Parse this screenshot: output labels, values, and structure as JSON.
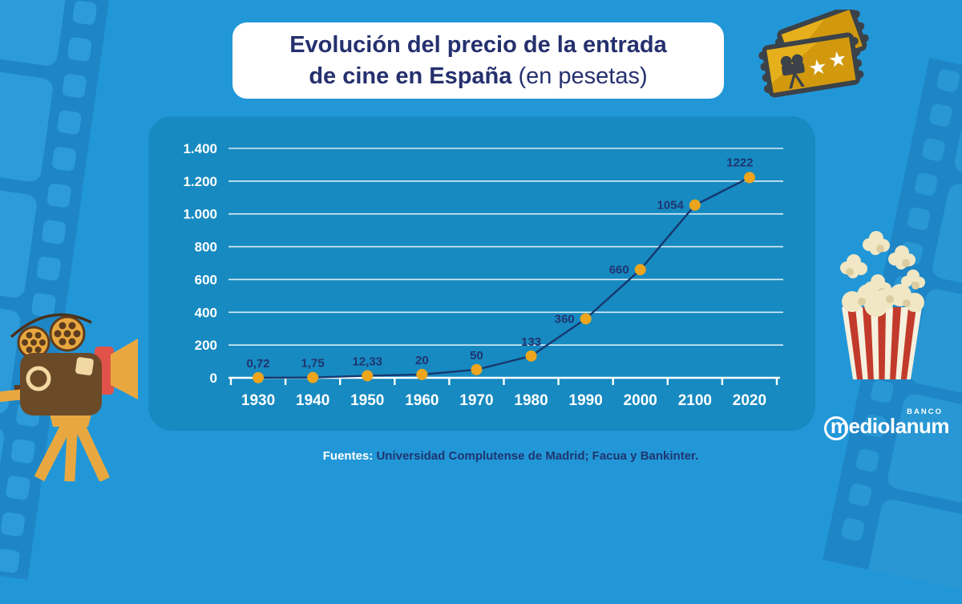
{
  "title": {
    "line1": "Evolución del precio de la entrada",
    "line2_bold": "de cine en España",
    "line2_light": "(en pesetas)"
  },
  "chart_data": {
    "type": "line",
    "title": "Evolución del precio de la entrada de cine en España (en pesetas)",
    "x": [
      "1930",
      "1940",
      "1950",
      "1960",
      "1970",
      "1980",
      "1990",
      "2000",
      "2100",
      "2020"
    ],
    "values": [
      0.72,
      1.75,
      12.33,
      20,
      50,
      133,
      360,
      660,
      1054,
      1222
    ],
    "point_labels": [
      "0,72",
      "1,75",
      "12,33",
      "20",
      "50",
      "133",
      "360",
      "660",
      "1054",
      "1222"
    ],
    "label_pos": [
      "above",
      "above",
      "above",
      "above",
      "above",
      "above",
      "left",
      "left",
      "left",
      "above-left"
    ],
    "ylabel": "",
    "xlabel": "",
    "ylim": [
      0,
      1400
    ],
    "ytick_step": 200,
    "ytick_labels": [
      "0",
      "200",
      "400",
      "600",
      "800",
      "1.000",
      "1.200",
      "1.400"
    ],
    "grid": true,
    "legend": "none",
    "line_color": "#16386e",
    "point_color": "#eca51d",
    "axis_color": "#ffffff",
    "label_color": "#20356f"
  },
  "footer": {
    "label": "Fuentes:",
    "text": "Universidad Complutense de Madrid; Facua y Bankinter."
  },
  "logo": {
    "sub": "BANCO",
    "brand": "mediolanum"
  },
  "colors": {
    "background": "#2297d8",
    "panel": "#168ac1",
    "navy_text": "#25306e",
    "accent_orange": "#eca51d",
    "film_strip_band": "#1e86c6",
    "ticket_gold": "#d2990e",
    "popcorn_red": "#c23a2b"
  },
  "icons": {
    "left_decoration": "film-strip",
    "right_decoration": "film-strip",
    "top_right": "cinema-tickets",
    "middle_right": "popcorn-bucket",
    "bottom_left": "film-camera",
    "brand_mark": "mediolanum-banco-logo"
  }
}
